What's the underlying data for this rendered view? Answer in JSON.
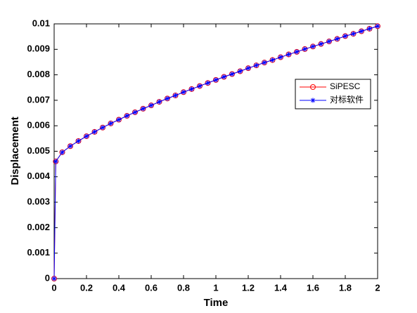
{
  "chart_data": {
    "type": "line",
    "xlabel": "Time",
    "ylabel": "Displacement",
    "x": [
      0,
      0.01,
      0.05,
      0.1,
      0.15,
      0.2,
      0.25,
      0.3,
      0.35,
      0.4,
      0.45,
      0.5,
      0.55,
      0.6,
      0.65,
      0.7,
      0.75,
      0.8,
      0.85,
      0.9,
      0.95,
      1,
      1.05,
      1.1,
      1.15,
      1.2,
      1.25,
      1.3,
      1.35,
      1.4,
      1.45,
      1.5,
      1.55,
      1.6,
      1.65,
      1.7,
      1.75,
      1.8,
      1.85,
      1.9,
      1.95,
      2
    ],
    "series": [
      {
        "name": "SiPESC",
        "color": "#ff0000",
        "marker": "circle",
        "values": [
          0,
          0.0046,
          0.00496,
          0.0052,
          0.0054,
          0.00559,
          0.00576,
          0.00593,
          0.00609,
          0.00624,
          0.00639,
          0.00653,
          0.00667,
          0.0068,
          0.00694,
          0.00707,
          0.00719,
          0.00732,
          0.00744,
          0.00756,
          0.00768,
          0.0078,
          0.00792,
          0.00803,
          0.00814,
          0.00826,
          0.00837,
          0.00848,
          0.00858,
          0.00869,
          0.0088,
          0.0089,
          0.00901,
          0.00911,
          0.00921,
          0.00931,
          0.00941,
          0.00952,
          0.00961,
          0.00971,
          0.00981,
          0.00991
        ]
      },
      {
        "name": "对标软件",
        "color": "#0000ff",
        "marker": "star",
        "values": [
          0,
          0.0046,
          0.00496,
          0.0052,
          0.0054,
          0.00559,
          0.00576,
          0.00593,
          0.00609,
          0.00624,
          0.00639,
          0.00653,
          0.00667,
          0.0068,
          0.00694,
          0.00707,
          0.00719,
          0.00732,
          0.00744,
          0.00756,
          0.00768,
          0.0078,
          0.00792,
          0.00803,
          0.00814,
          0.00826,
          0.00837,
          0.00848,
          0.00858,
          0.00869,
          0.0088,
          0.0089,
          0.00901,
          0.00911,
          0.00921,
          0.00931,
          0.00941,
          0.00952,
          0.00961,
          0.00971,
          0.00981,
          0.00991
        ]
      }
    ],
    "xlim": [
      0,
      2
    ],
    "xticks": [
      0,
      0.2,
      0.4,
      0.6,
      0.8,
      1,
      1.2,
      1.4,
      1.6,
      1.8,
      2
    ],
    "ylim": [
      0,
      0.01
    ],
    "yticks": [
      0,
      0.001,
      0.002,
      0.003,
      0.004,
      0.005,
      0.006,
      0.007,
      0.008,
      0.009,
      0.01
    ],
    "grid": false,
    "legend": "right"
  }
}
